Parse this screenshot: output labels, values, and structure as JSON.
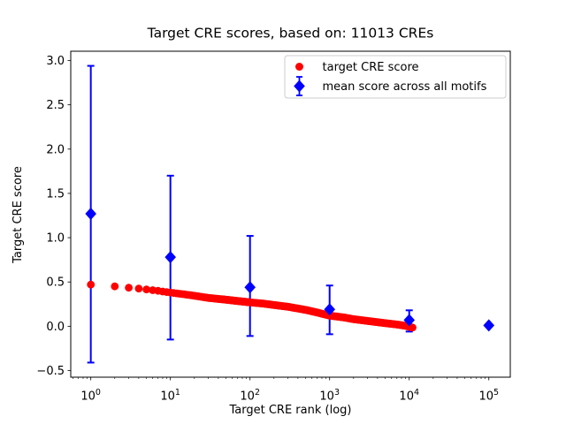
{
  "figure": {
    "title": "Target CRE scores, based on: 11013 CREs"
  },
  "legend": {
    "position": "upper right",
    "items": [
      {
        "label": "target CRE score",
        "marker": "red-circle",
        "color": "#ff0000"
      },
      {
        "label": "mean score across all motifs",
        "marker": "blue-diamond-errorbar",
        "color": "#0000ff"
      }
    ]
  },
  "colors": {
    "red_series": "#ff0000",
    "blue_series": "#0000ff",
    "axis": "#000000",
    "legend_border": "#cccccc",
    "background": "#ffffff"
  },
  "chart_data": {
    "type": "scatter",
    "title": "Target CRE scores, based on: 11013 CREs",
    "xlabel": "Target CRE rank (log)",
    "ylabel": "Target CRE score",
    "x_scale": "log",
    "grid": false,
    "legend_position": "upper right",
    "xlim": [
      0.56,
      186000
    ],
    "ylim": [
      -0.575,
      3.105
    ],
    "x_tick_values": [
      1,
      10,
      100,
      1000,
      10000,
      100000
    ],
    "x_tick_base": "10",
    "x_tick_exponents": [
      "0",
      "1",
      "2",
      "3",
      "4",
      "5"
    ],
    "y_tick_values": [
      3.0,
      2.5,
      2.0,
      1.5,
      1.0,
      0.5,
      0.0,
      -0.5
    ],
    "y_tick_labels": [
      "3.0",
      "2.5",
      "2.0",
      "1.5",
      "1.0",
      "0.5",
      "0.0",
      "−0.5"
    ],
    "series": [
      {
        "name": "target CRE score",
        "type": "scatter",
        "marker": "circle",
        "color": "#ff0000",
        "n_points_depicted": 11013,
        "x_range": [
          1,
          11013
        ],
        "curve_samples": {
          "x": [
            1,
            2,
            3,
            4,
            5,
            7,
            10,
            15,
            20,
            30,
            50,
            70,
            100,
            150,
            200,
            300,
            500,
            700,
            1000,
            1500,
            2000,
            3000,
            5000,
            7000,
            9000,
            11013
          ],
          "y": [
            0.47,
            0.45,
            0.435,
            0.425,
            0.415,
            0.4,
            0.38,
            0.36,
            0.345,
            0.32,
            0.3,
            0.285,
            0.27,
            0.255,
            0.24,
            0.22,
            0.185,
            0.155,
            0.12,
            0.1,
            0.08,
            0.06,
            0.035,
            0.02,
            0.005,
            -0.015
          ]
        }
      },
      {
        "name": "mean score across all motifs",
        "type": "errorbar",
        "marker": "diamond",
        "color": "#0000ff",
        "points": [
          {
            "x": 1,
            "y": 1.27,
            "y_low": -0.41,
            "y_high": 2.94
          },
          {
            "x": 10,
            "y": 0.78,
            "y_low": -0.15,
            "y_high": 1.7
          },
          {
            "x": 100,
            "y": 0.44,
            "y_low": -0.11,
            "y_high": 1.02
          },
          {
            "x": 1000,
            "y": 0.19,
            "y_low": -0.09,
            "y_high": 0.46
          },
          {
            "x": 10000,
            "y": 0.07,
            "y_low": -0.06,
            "y_high": 0.18
          },
          {
            "x": 100000,
            "y": 0.01,
            "y_low": 0.01,
            "y_high": 0.01
          }
        ]
      }
    ]
  }
}
